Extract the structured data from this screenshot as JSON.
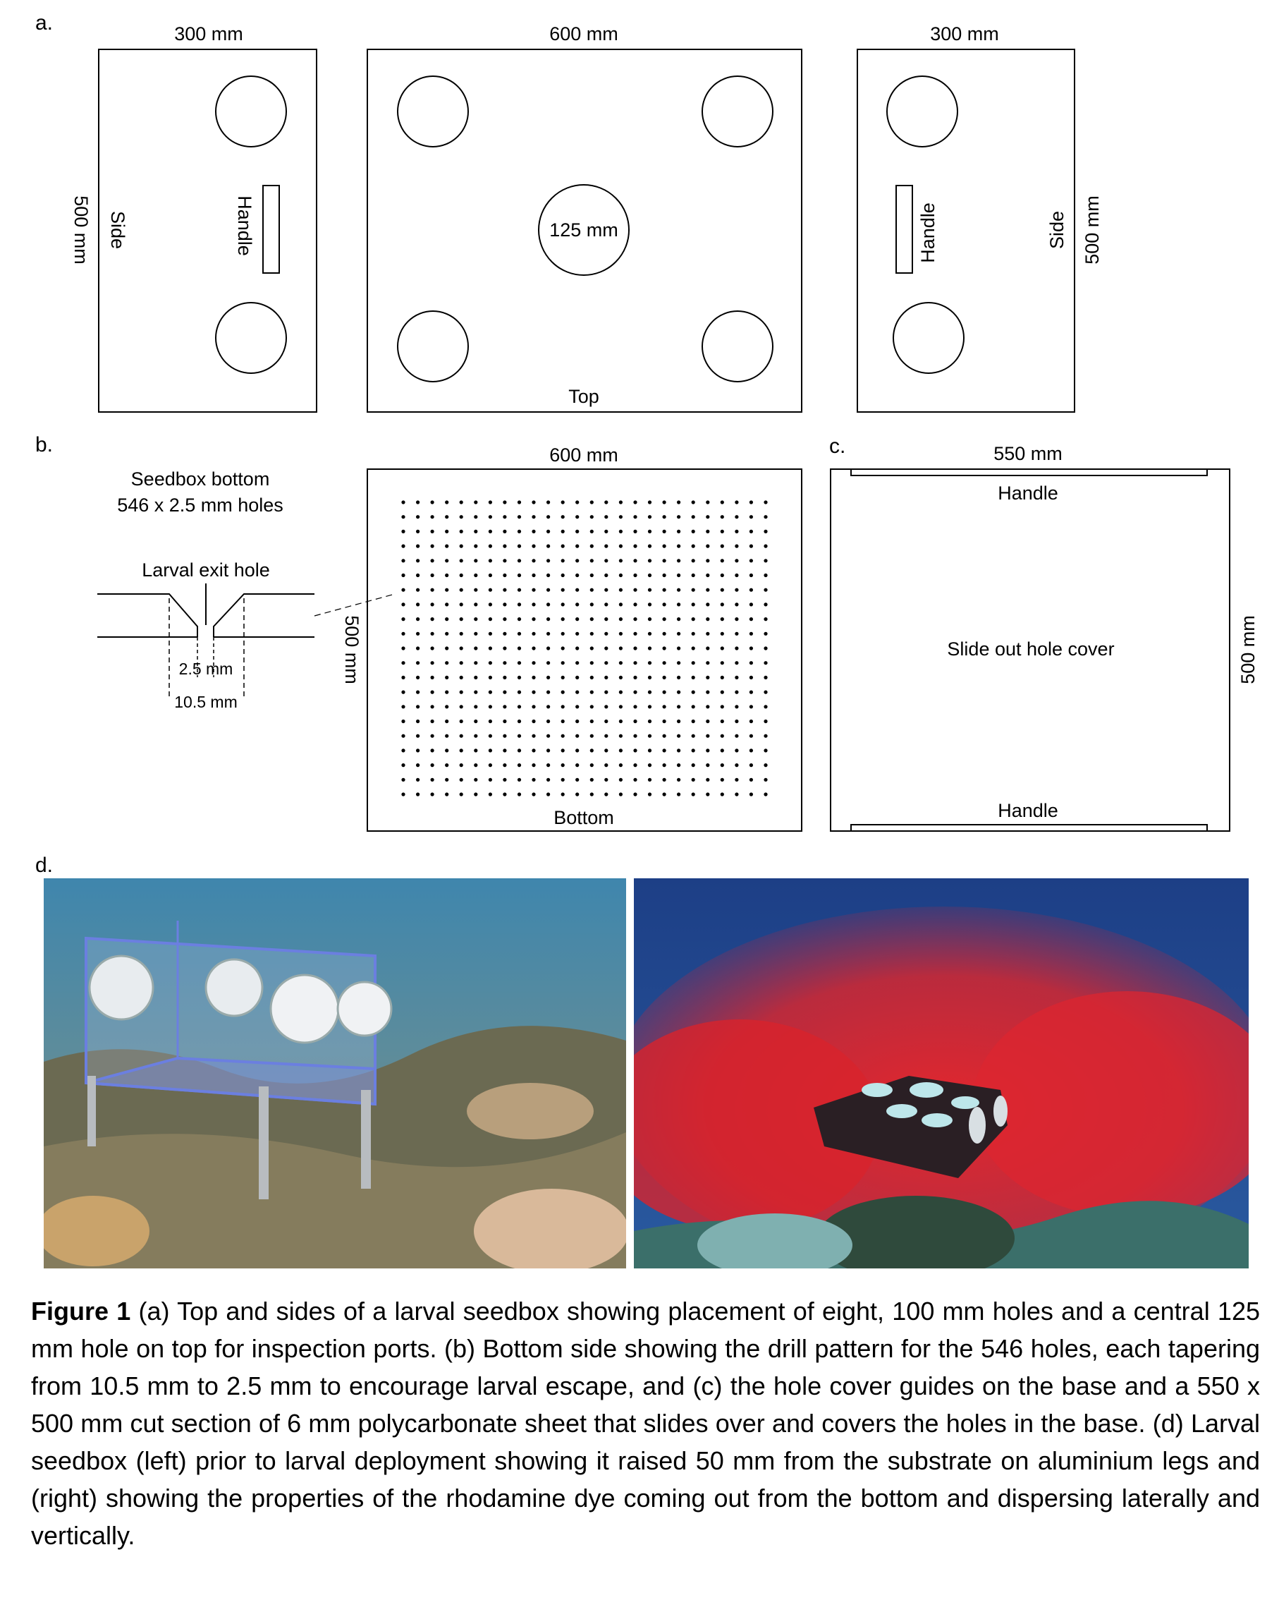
{
  "panel_labels": {
    "a": "a.",
    "b": "b.",
    "c": "c.",
    "d": "d."
  },
  "panel_a": {
    "left_side": {
      "width_label": "300 mm",
      "height_label": "500 mm",
      "side_label": "Side",
      "handle_label": "Handle"
    },
    "top": {
      "width_label": "600 mm",
      "center_hole_label": "125 mm",
      "face_label": "Top"
    },
    "right_side": {
      "width_label": "300 mm",
      "height_label": "500 mm",
      "side_label": "Side",
      "handle_label": "Handle"
    }
  },
  "panel_b": {
    "title_line1": "Seedbox bottom",
    "title_line2": "546 x 2.5 mm holes",
    "exit_hole_label": "Larval exit hole",
    "inner_dim_label": "2.5 mm",
    "outer_dim_label": "10.5 mm",
    "width_label": "600 mm",
    "height_label": "500 mm",
    "face_label": "Bottom",
    "hole_grid": {
      "rows": 21,
      "cols": 26
    }
  },
  "panel_c": {
    "width_label": "550 mm",
    "height_label": "500 mm",
    "top_handle_label": "Handle",
    "bottom_handle_label": "Handle",
    "center_label": "Slide out hole cover"
  },
  "caption": {
    "lead": "Figure 1",
    "text": " (a) Top and sides of a larval seedbox showing placement of eight, 100 mm holes and a central 125 mm hole on top for inspection ports. (b) Bottom side showing the drill pattern for the 546 holes, each tapering from 10.5 mm to 2.5 mm to encourage larval escape, and (c) the hole cover guides on the base and a 550 x 500 mm cut section of 6 mm polycarbonate sheet that slides over and covers the holes in the base. (d) Larval seedbox (left) prior to larval deployment showing it raised 50 mm from the substrate on aluminium legs and (right) showing the properties of the rhodamine dye coming out from the bottom and dispersing laterally and vertically."
  },
  "colors": {
    "water_left": "#2f6f95",
    "water_right": "#1f4f8a",
    "dye": "#e0262f",
    "box_blue": "#6b7fe0"
  }
}
